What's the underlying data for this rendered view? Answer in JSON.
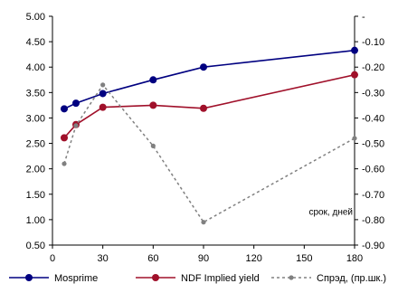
{
  "chart_data": {
    "type": "line",
    "title": "",
    "xlabel": "срок, дней",
    "ylabel": "",
    "xlim": [
      0,
      180
    ],
    "x_ticks": [
      0,
      30,
      60,
      90,
      120,
      150,
      180
    ],
    "ylim_left": [
      0.5,
      5.0
    ],
    "y_ticks_left": [
      "5.00",
      "4.50",
      "4.00",
      "3.50",
      "3.00",
      "2.50",
      "2.00",
      "1.50",
      "1.00",
      "0.50"
    ],
    "ylim_right": [
      -0.9,
      0.0
    ],
    "y_ticks_right": [
      "-",
      "-0.10",
      "-0.20",
      "-0.30",
      "-0.40",
      "-0.50",
      "-0.60",
      "-0.70",
      "-0.80",
      "-0.90"
    ],
    "grid": false,
    "legend_position": "bottom",
    "series": [
      {
        "name": "Mosprime",
        "axis": "left",
        "color": "#000080",
        "style": "solid",
        "marker": "circle",
        "x": [
          7,
          14,
          30,
          60,
          90,
          180
        ],
        "y": [
          3.18,
          3.29,
          3.48,
          3.75,
          4.0,
          4.33
        ]
      },
      {
        "name": "NDF Implied yield",
        "axis": "left",
        "color": "#a0102a",
        "style": "solid",
        "marker": "circle",
        "x": [
          7,
          14,
          30,
          60,
          90,
          180
        ],
        "y": [
          2.61,
          2.87,
          3.21,
          3.25,
          3.19,
          3.85
        ]
      },
      {
        "name": "Спрэд, (пр.шк.)",
        "axis": "right",
        "color": "#808080",
        "style": "dashed",
        "marker": "circle",
        "x": [
          7,
          14,
          30,
          60,
          90,
          180
        ],
        "y": [
          -0.58,
          -0.43,
          -0.27,
          -0.51,
          -0.81,
          -0.48
        ]
      }
    ]
  }
}
